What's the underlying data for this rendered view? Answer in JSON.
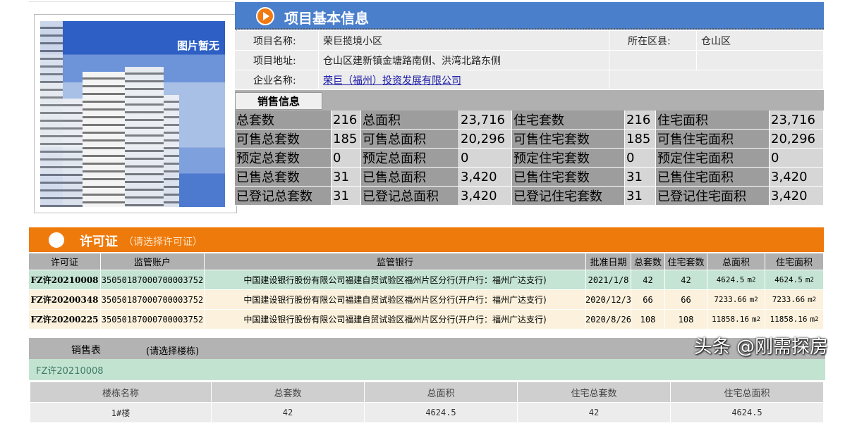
{
  "photo": {
    "placeholder_text": "图片暂无"
  },
  "project": {
    "title": "项目基本信息",
    "name_label": "项目名称:",
    "name": "荣巨揽境小区",
    "district_label": "所在区县:",
    "district": "仓山区",
    "address_label": "项目地址:",
    "address": "仓山区建新镇金塘路南侧、洪湾北路东侧",
    "company_label": "企业名称:",
    "company": "荣巨（福州）投资发展有限公司"
  },
  "sales_info": {
    "tab": "销售信息",
    "rows": [
      [
        "总套数",
        "216",
        "总面积",
        "23,716",
        "住宅套数",
        "216",
        "住宅面积",
        "23,716"
      ],
      [
        "可售总套数",
        "185",
        "可售总面积",
        "20,296",
        "可售住宅套数",
        "185",
        "可售住宅面积",
        "20,296"
      ],
      [
        "预定总套数",
        "0",
        "预定总面积",
        "0",
        "预定住宅套数",
        "0",
        "预定住宅面积",
        "0"
      ],
      [
        "已售总套数",
        "31",
        "已售总面积",
        "3,420",
        "已售住宅套数",
        "31",
        "已售住宅面积",
        "3,420"
      ],
      [
        "已登记总套数",
        "31",
        "已登记总面积",
        "3,420",
        "已登记住宅套数",
        "31",
        "已登记住宅面积",
        "3,420"
      ]
    ]
  },
  "permits": {
    "title": "许可证",
    "hint": "（请选择许可证）",
    "columns": [
      "许可证",
      "监管账户",
      "监管银行",
      "批准日期",
      "总套数",
      "住宅套数",
      "总面积",
      "住宅面积"
    ],
    "unit": "m",
    "rows": [
      [
        "FZ许20210008",
        "35050187000700003752",
        "中国建设银行股份有限公司福建自贸试验区福州片区分行(开户行：福州广达支行)",
        "2021/1/8",
        "42",
        "42",
        "4624.5",
        "4624.5"
      ],
      [
        "FZ许20200348",
        "35050187000700003752",
        "中国建设银行股份有限公司福建自贸试验区福州片区分行(开户行：福州广达支行)",
        "2020/12/3",
        "66",
        "66",
        "7233.66",
        "7233.66"
      ],
      [
        "FZ许20200225",
        "35050187000700003752",
        "中国建设银行股份有限公司福建自贸试验区福州片区分行(开户行：福州广达支行)",
        "2020/8/26",
        "108",
        "108",
        "11858.16",
        "11858.16"
      ]
    ]
  },
  "sales_table": {
    "title": "销售表",
    "hint": "(请选择楼栋)",
    "selected_permit": "FZ许20210008",
    "columns": [
      "楼栋名称",
      "总套数",
      "总面积",
      "住宅总套数",
      "住宅总面积"
    ],
    "rows": [
      [
        "1#楼",
        "42",
        "4624.5",
        "42",
        "4624.5"
      ]
    ]
  },
  "watermark": "头条 @刚需探房"
}
